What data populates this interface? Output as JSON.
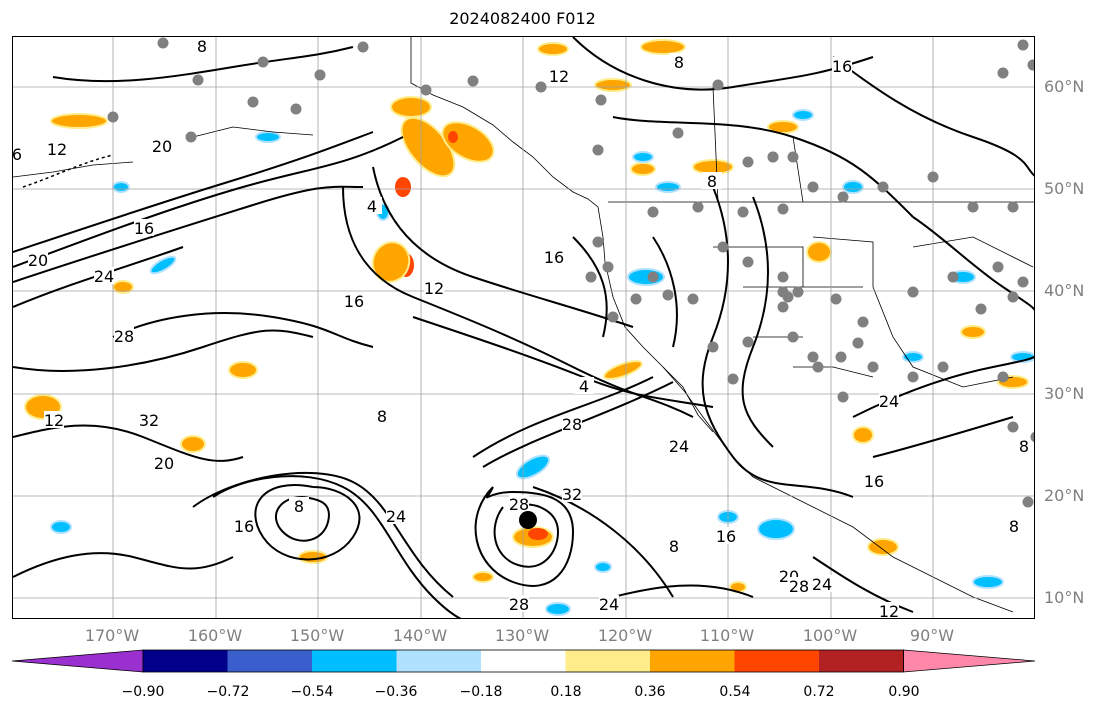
{
  "title": "2024082400 F012",
  "lat_labels": [
    "60°N",
    "50°N",
    "40°N",
    "30°N",
    "20°N",
    "10°N"
  ],
  "lon_labels": [
    "170°W",
    "160°W",
    "150°W",
    "140°W",
    "130°W",
    "120°W",
    "110°W",
    "100°W",
    "90°W"
  ],
  "colorbar": {
    "tick_labels": [
      "−0.90",
      "−0.72",
      "−0.54",
      "−0.36",
      "−0.18",
      "0.18",
      "0.36",
      "0.54",
      "0.72",
      "0.90"
    ],
    "colors": [
      "#9b30d0",
      "#00008b",
      "#3a5fcd",
      "#00bfff",
      "#b0e2ff",
      "#ffffff",
      "#ffec8b",
      "#ffa500",
      "#ff4500",
      "#b22222",
      "#ff88aa"
    ]
  },
  "contour_labels": [
    "8",
    "12",
    "16",
    "20",
    "24",
    "28",
    "32",
    "4",
    "16",
    "8",
    "12",
    "20",
    "16",
    "8",
    "24",
    "28",
    "32",
    "28",
    "24",
    "8",
    "16",
    "20",
    "24",
    "12",
    "8",
    "16",
    "4",
    "28",
    "24",
    "28",
    "16",
    "8",
    "12",
    "20",
    "24",
    "16",
    "8",
    "6",
    "12",
    "8"
  ]
}
